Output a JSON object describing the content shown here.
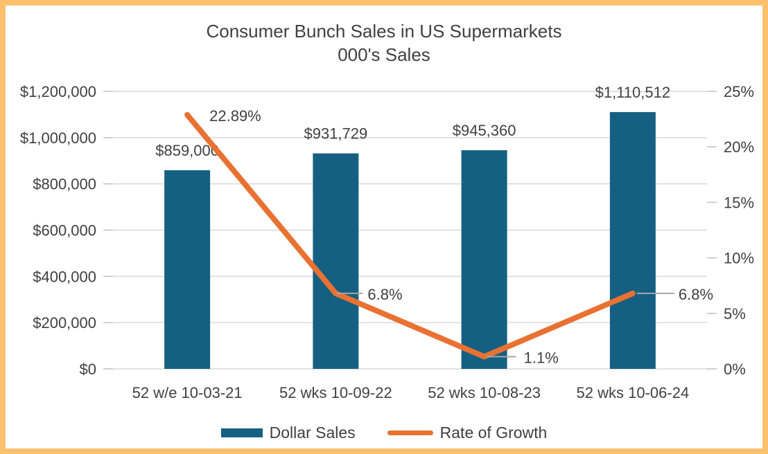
{
  "page": {
    "background": "#FFFFFF",
    "border_color": "#FAC06E"
  },
  "chart_data": {
    "type": "combo",
    "title": "Consumer Bunch Sales in US Supermarkets",
    "subtitle": "000's Sales",
    "categories": [
      "52 w/e 10-03-21",
      "52 wks 10-09-22",
      "52 wks 10-08-23",
      "52 wks 10-06-24"
    ],
    "series": [
      {
        "name": "Dollar Sales",
        "type": "bar",
        "axis": "left",
        "color": "#156082",
        "values": [
          859000,
          931729,
          945360,
          1110512
        ],
        "data_labels": [
          "$859,000",
          "$931,729",
          "$945,360",
          "$1,110,512"
        ]
      },
      {
        "name": "Rate of Growth",
        "type": "line",
        "axis": "right",
        "color": "#E97132",
        "values": [
          22.89,
          6.8,
          1.1,
          6.8
        ],
        "data_labels": [
          "22.89%",
          "6.8%",
          "1.1%",
          "6.8%"
        ]
      }
    ],
    "left_axis": {
      "min": 0,
      "max": 1200000,
      "step": 200000,
      "tick_labels": [
        "$0",
        "$200,000",
        "$400,000",
        "$600,000",
        "$800,000",
        "$1,000,000",
        "$1,200,000"
      ]
    },
    "right_axis": {
      "min": 0,
      "max": 25,
      "step": 5,
      "tick_labels": [
        "0%",
        "5%",
        "10%",
        "15%",
        "20%",
        "25%"
      ]
    },
    "grid": true,
    "legend_position": "bottom",
    "colors": {
      "grid": "#D9D9D9",
      "tick": "#BFBFBF",
      "leader": "#A6A6A6",
      "text": "#404040"
    }
  }
}
